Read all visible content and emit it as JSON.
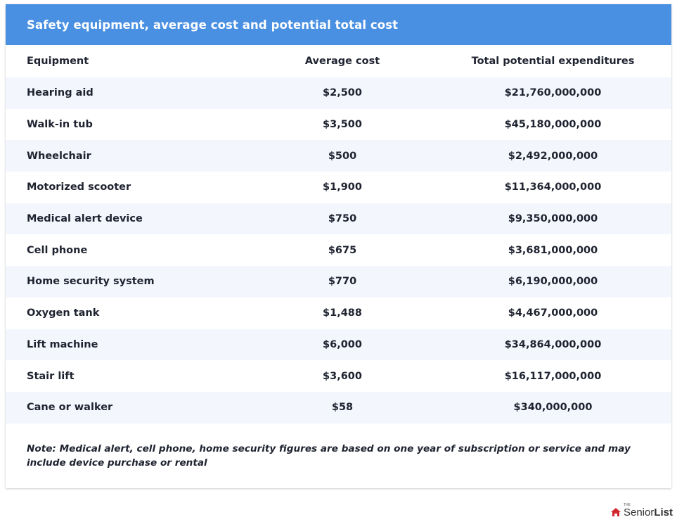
{
  "table": {
    "title": "Safety equipment, average cost and potential total cost",
    "columns": [
      "Equipment",
      "Average cost",
      "Total potential expenditures"
    ],
    "rows": [
      [
        "Hearing aid",
        "$2,500",
        "$21,760,000,000"
      ],
      [
        "Walk-in tub",
        "$3,500",
        "$45,180,000,000"
      ],
      [
        "Wheelchair",
        "$500",
        "$2,492,000,000"
      ],
      [
        "Motorized scooter",
        "$1,900",
        "$11,364,000,000"
      ],
      [
        "Medical alert device",
        "$750",
        "$9,350,000,000"
      ],
      [
        "Cell phone",
        "$675",
        "$3,681,000,000"
      ],
      [
        "Home security system",
        "$770",
        "$6,190,000,000"
      ],
      [
        "Oxygen tank",
        "$1,488",
        "$4,467,000,000"
      ],
      [
        "Lift machine",
        "$6,000",
        "$34,864,000,000"
      ],
      [
        "Stair lift",
        "$3,600",
        "$16,117,000,000"
      ],
      [
        "Cane or walker",
        "$58",
        "$340,000,000"
      ]
    ],
    "note": "Note: Medical alert, cell phone, home security figures are based on one year of subscription or service and may include device purchase or rental"
  },
  "logo": {
    "prefix": "THE",
    "part1": "Senior",
    "part2": "List",
    "icon": "senior-list-house-icon"
  },
  "colors": {
    "header_bg": "#4a90e2",
    "row_alt_bg": "#f3f7fd",
    "logo_red": "#d0282e"
  }
}
